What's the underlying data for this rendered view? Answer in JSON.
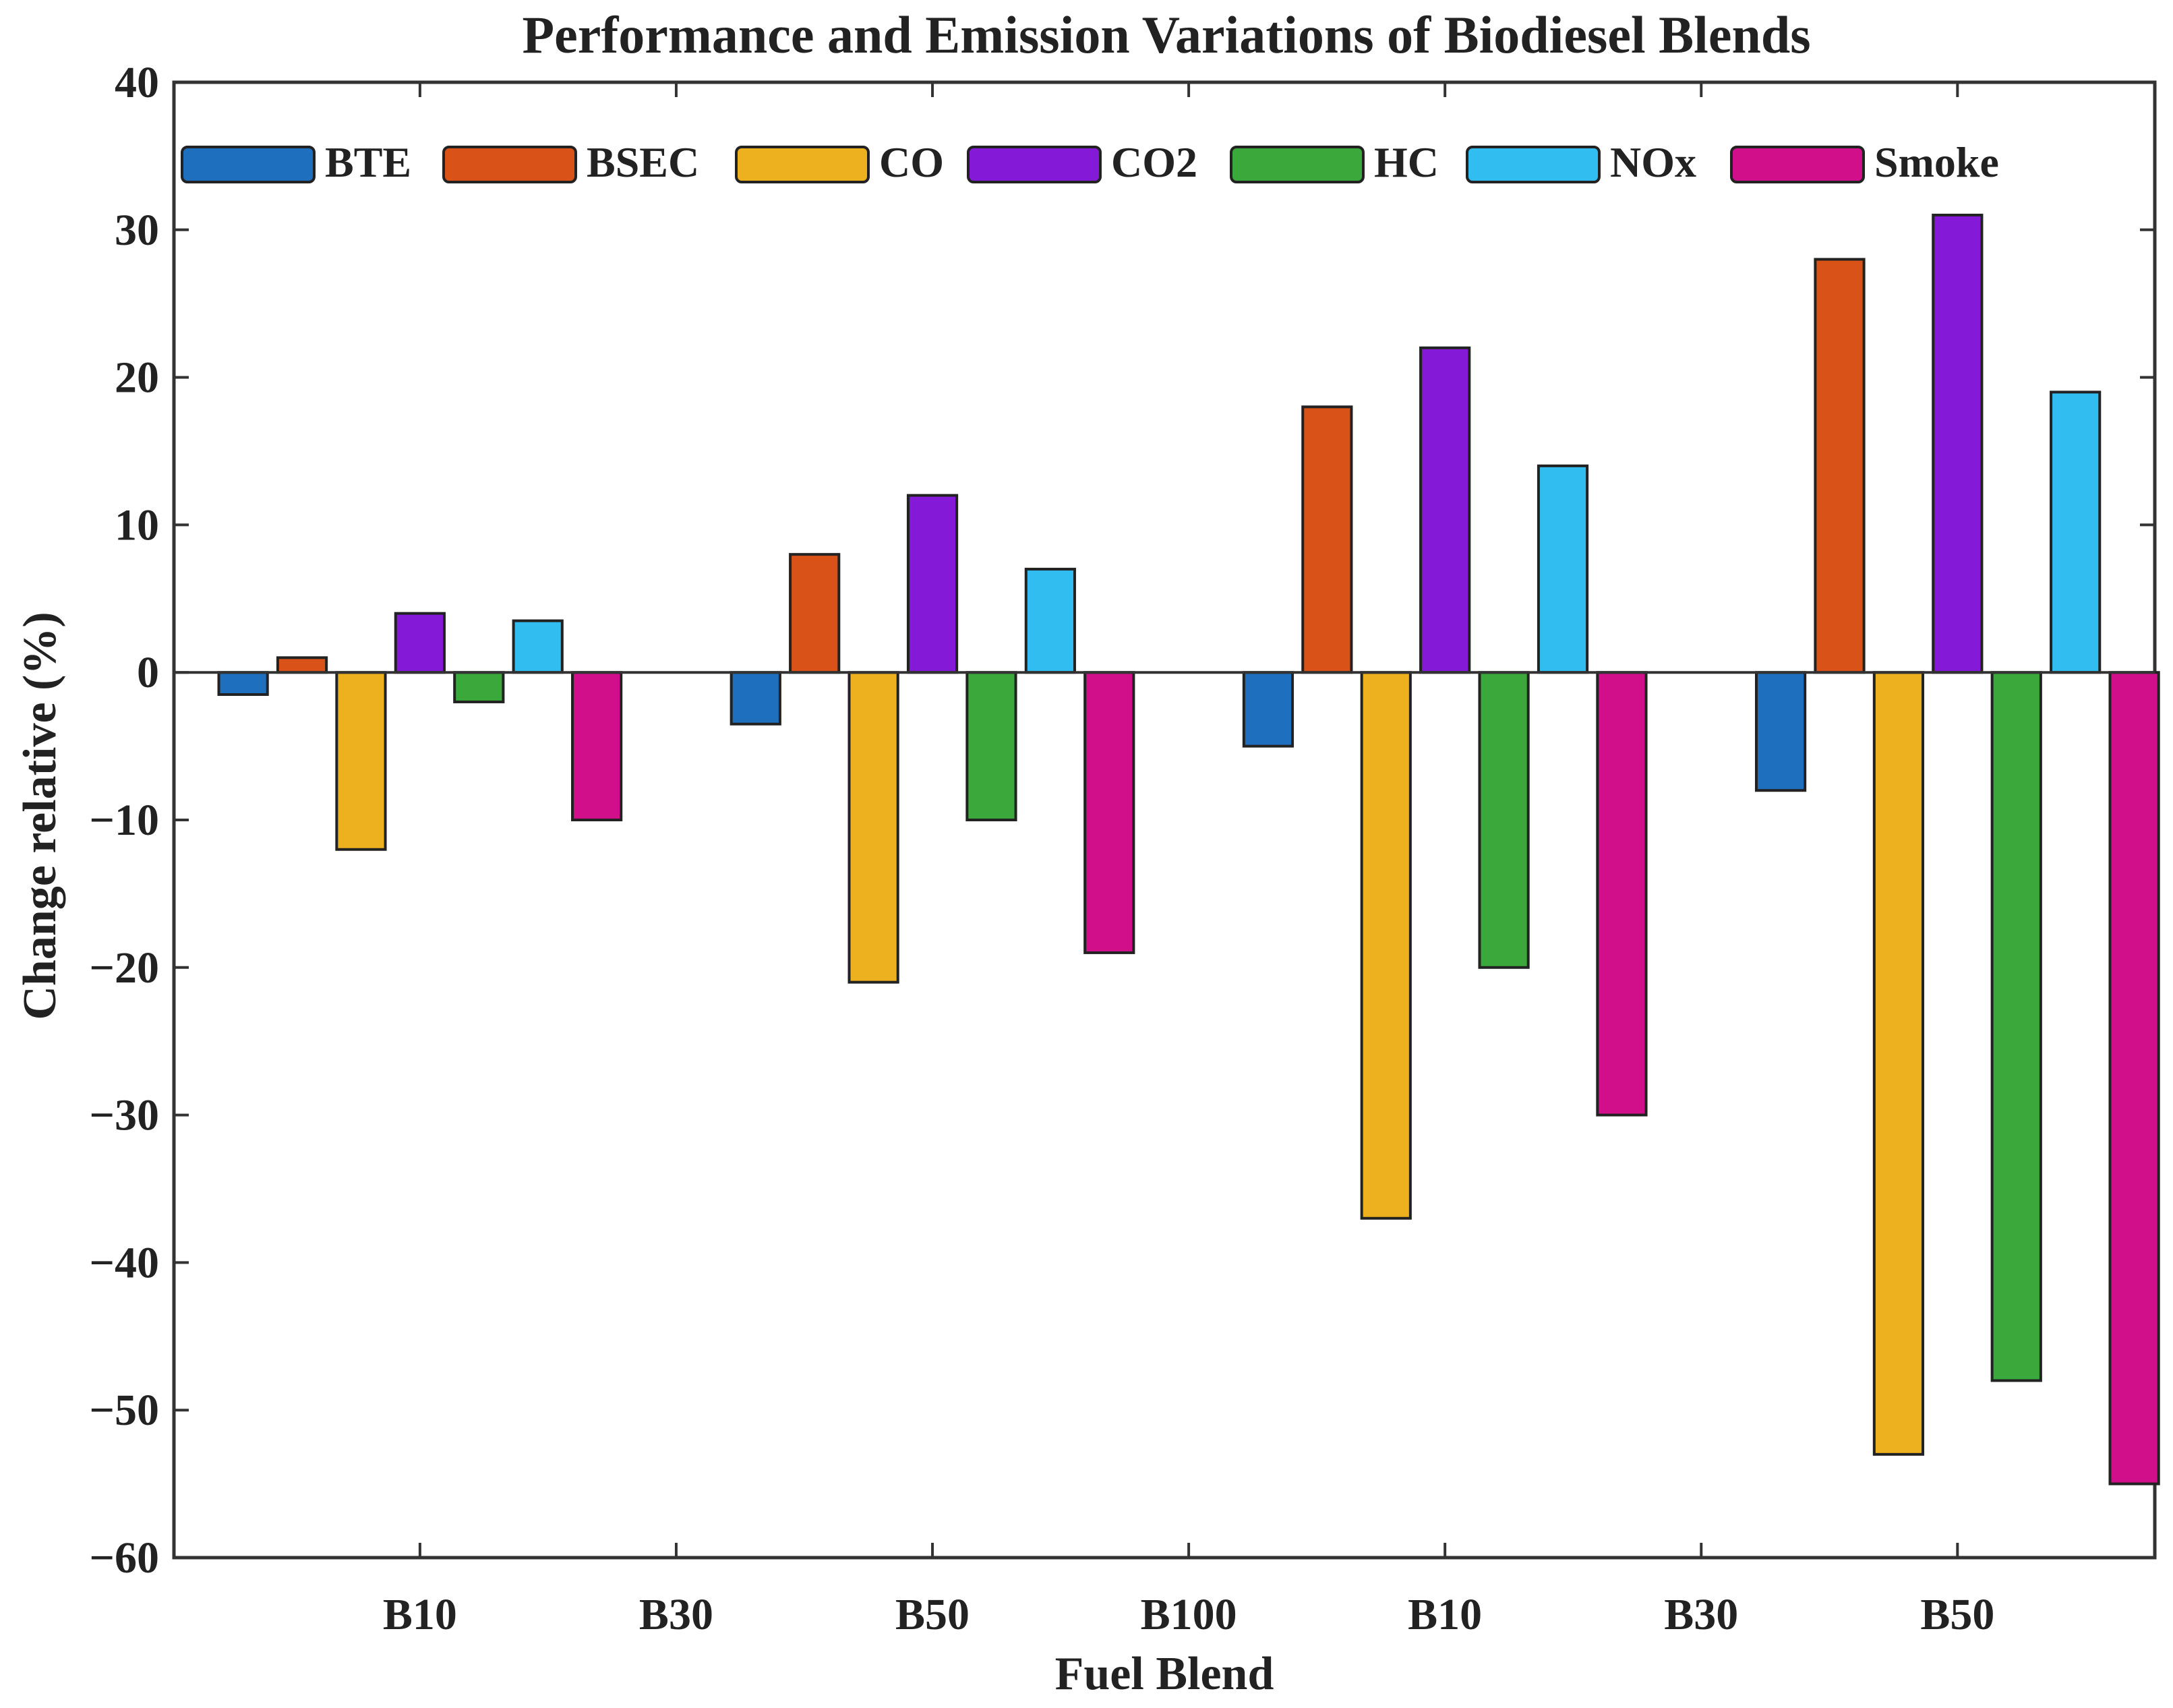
{
  "chart_data": {
    "type": "bar",
    "title": "Performance and Emission Variations of Biodiesel Blends",
    "xlabel": "Fuel Blend",
    "ylabel": "Change relative (%)",
    "ylim": [
      -60,
      40
    ],
    "yticks": [
      40,
      30,
      20,
      10,
      0,
      -10,
      -20,
      -30,
      -40,
      -50,
      -60
    ],
    "ytick_labels": [
      "40",
      "30",
      "20",
      "10",
      "0",
      "−10",
      "−20",
      "−30",
      "−40",
      "−50",
      "−60"
    ],
    "xlim": [
      0.04,
      7.77
    ],
    "xtick_labels": [
      "B10",
      "B30",
      "B50",
      "B100",
      "B10",
      "B30",
      "B50"
    ],
    "xtick_positions": [
      1,
      2,
      3,
      4,
      5,
      6,
      7
    ],
    "group_centers": [
      1,
      3,
      5,
      7
    ],
    "bar_offsets": [
      -0.69,
      -0.46,
      -0.23,
      0,
      0.23,
      0.46,
      0.69
    ],
    "bar_width": 0.19,
    "grid": false,
    "legend_position": "top",
    "series": [
      {
        "name": "BTE",
        "color": "#1f6fbf",
        "values": [
          -1.5,
          -3.5,
          -5,
          -8
        ]
      },
      {
        "name": "BSEC",
        "color": "#d95319",
        "values": [
          1,
          8,
          18,
          28
        ]
      },
      {
        "name": "CO",
        "color": "#edb120",
        "values": [
          -12,
          -21,
          -37,
          -53
        ]
      },
      {
        "name": "CO2",
        "color": "#8419d8",
        "values": [
          4,
          12,
          22,
          31
        ]
      },
      {
        "name": "HC",
        "color": "#3aa83a",
        "values": [
          -2,
          -10,
          -20,
          -48
        ]
      },
      {
        "name": "NOx",
        "color": "#31bdf0",
        "values": [
          3.5,
          7,
          14,
          19
        ]
      },
      {
        "name": "Smoke",
        "color": "#d10f8a",
        "values": [
          -10,
          -19,
          -30,
          -55
        ]
      }
    ]
  }
}
